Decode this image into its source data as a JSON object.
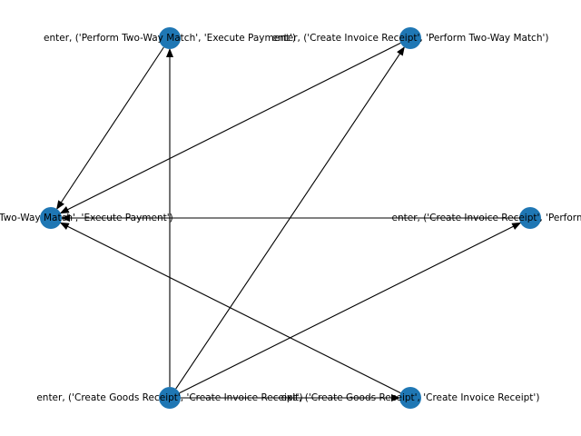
{
  "graph": {
    "node_color": "#1f77b4",
    "edge_color": "#000000",
    "nodes": [
      {
        "id": "n1",
        "label": "enter, ('Perform Two-Way Match', 'Execute Payment')"
      },
      {
        "id": "n2",
        "label": "enter, ('Create Invoice Receipt', 'Perform Two-Way Match')"
      },
      {
        "id": "n3",
        "label": "exit, ('Perform Two-Way Match', 'Execute Payment')"
      },
      {
        "id": "n4",
        "label": "enter, ('Create Invoice Receipt', 'Perform Two-Way Match')"
      },
      {
        "id": "n5",
        "label": "enter, ('Create Goods Receipt', 'Create Invoice Receipt')"
      },
      {
        "id": "n6",
        "label": "exit, ('Create Goods Receipt', 'Create Invoice Receipt')"
      }
    ],
    "edges": [
      {
        "source": "n1",
        "target": "n3"
      },
      {
        "source": "n2",
        "target": "n3"
      },
      {
        "source": "n4",
        "target": "n3"
      },
      {
        "source": "n6",
        "target": "n3"
      },
      {
        "source": "n5",
        "target": "n1"
      },
      {
        "source": "n5",
        "target": "n2"
      },
      {
        "source": "n5",
        "target": "n4"
      },
      {
        "source": "n5",
        "target": "n6"
      }
    ]
  }
}
